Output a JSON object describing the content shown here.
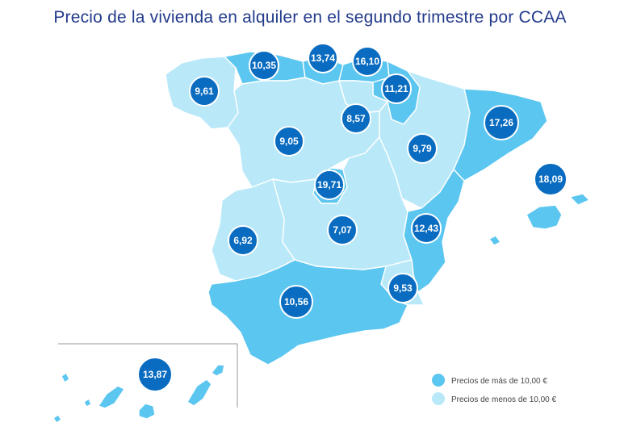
{
  "title": "Precio de la vivienda en alquiler en el segundo trimestre por CCAA",
  "colors": {
    "high": "#5bc6f0",
    "low": "#b9e9f9",
    "bubble": "#0a6cc0"
  },
  "legend": [
    {
      "label": "Precios de más de 10,00 €",
      "color": "#5bc6f0"
    },
    {
      "label": "Precios de menos de 10,00 €",
      "color": "#b9e9f9"
    }
  ],
  "regions": [
    {
      "value": "9,61",
      "category": "low"
    },
    {
      "value": "10,35",
      "category": "high"
    },
    {
      "value": "13,74",
      "category": "high"
    },
    {
      "value": "16,10",
      "category": "high"
    },
    {
      "value": "11,21",
      "category": "high"
    },
    {
      "value": "8,57",
      "category": "low"
    },
    {
      "value": "9,05",
      "category": "low"
    },
    {
      "value": "9,79",
      "category": "low"
    },
    {
      "value": "17,26",
      "category": "high"
    },
    {
      "value": "19,71",
      "category": "high"
    },
    {
      "value": "18,09",
      "category": "high"
    },
    {
      "value": "12,43",
      "category": "high"
    },
    {
      "value": "6,92",
      "category": "low"
    },
    {
      "value": "7,07",
      "category": "low"
    },
    {
      "value": "9,53",
      "category": "low"
    },
    {
      "value": "10,56",
      "category": "high"
    },
    {
      "value": "13,87",
      "category": "high"
    }
  ]
}
